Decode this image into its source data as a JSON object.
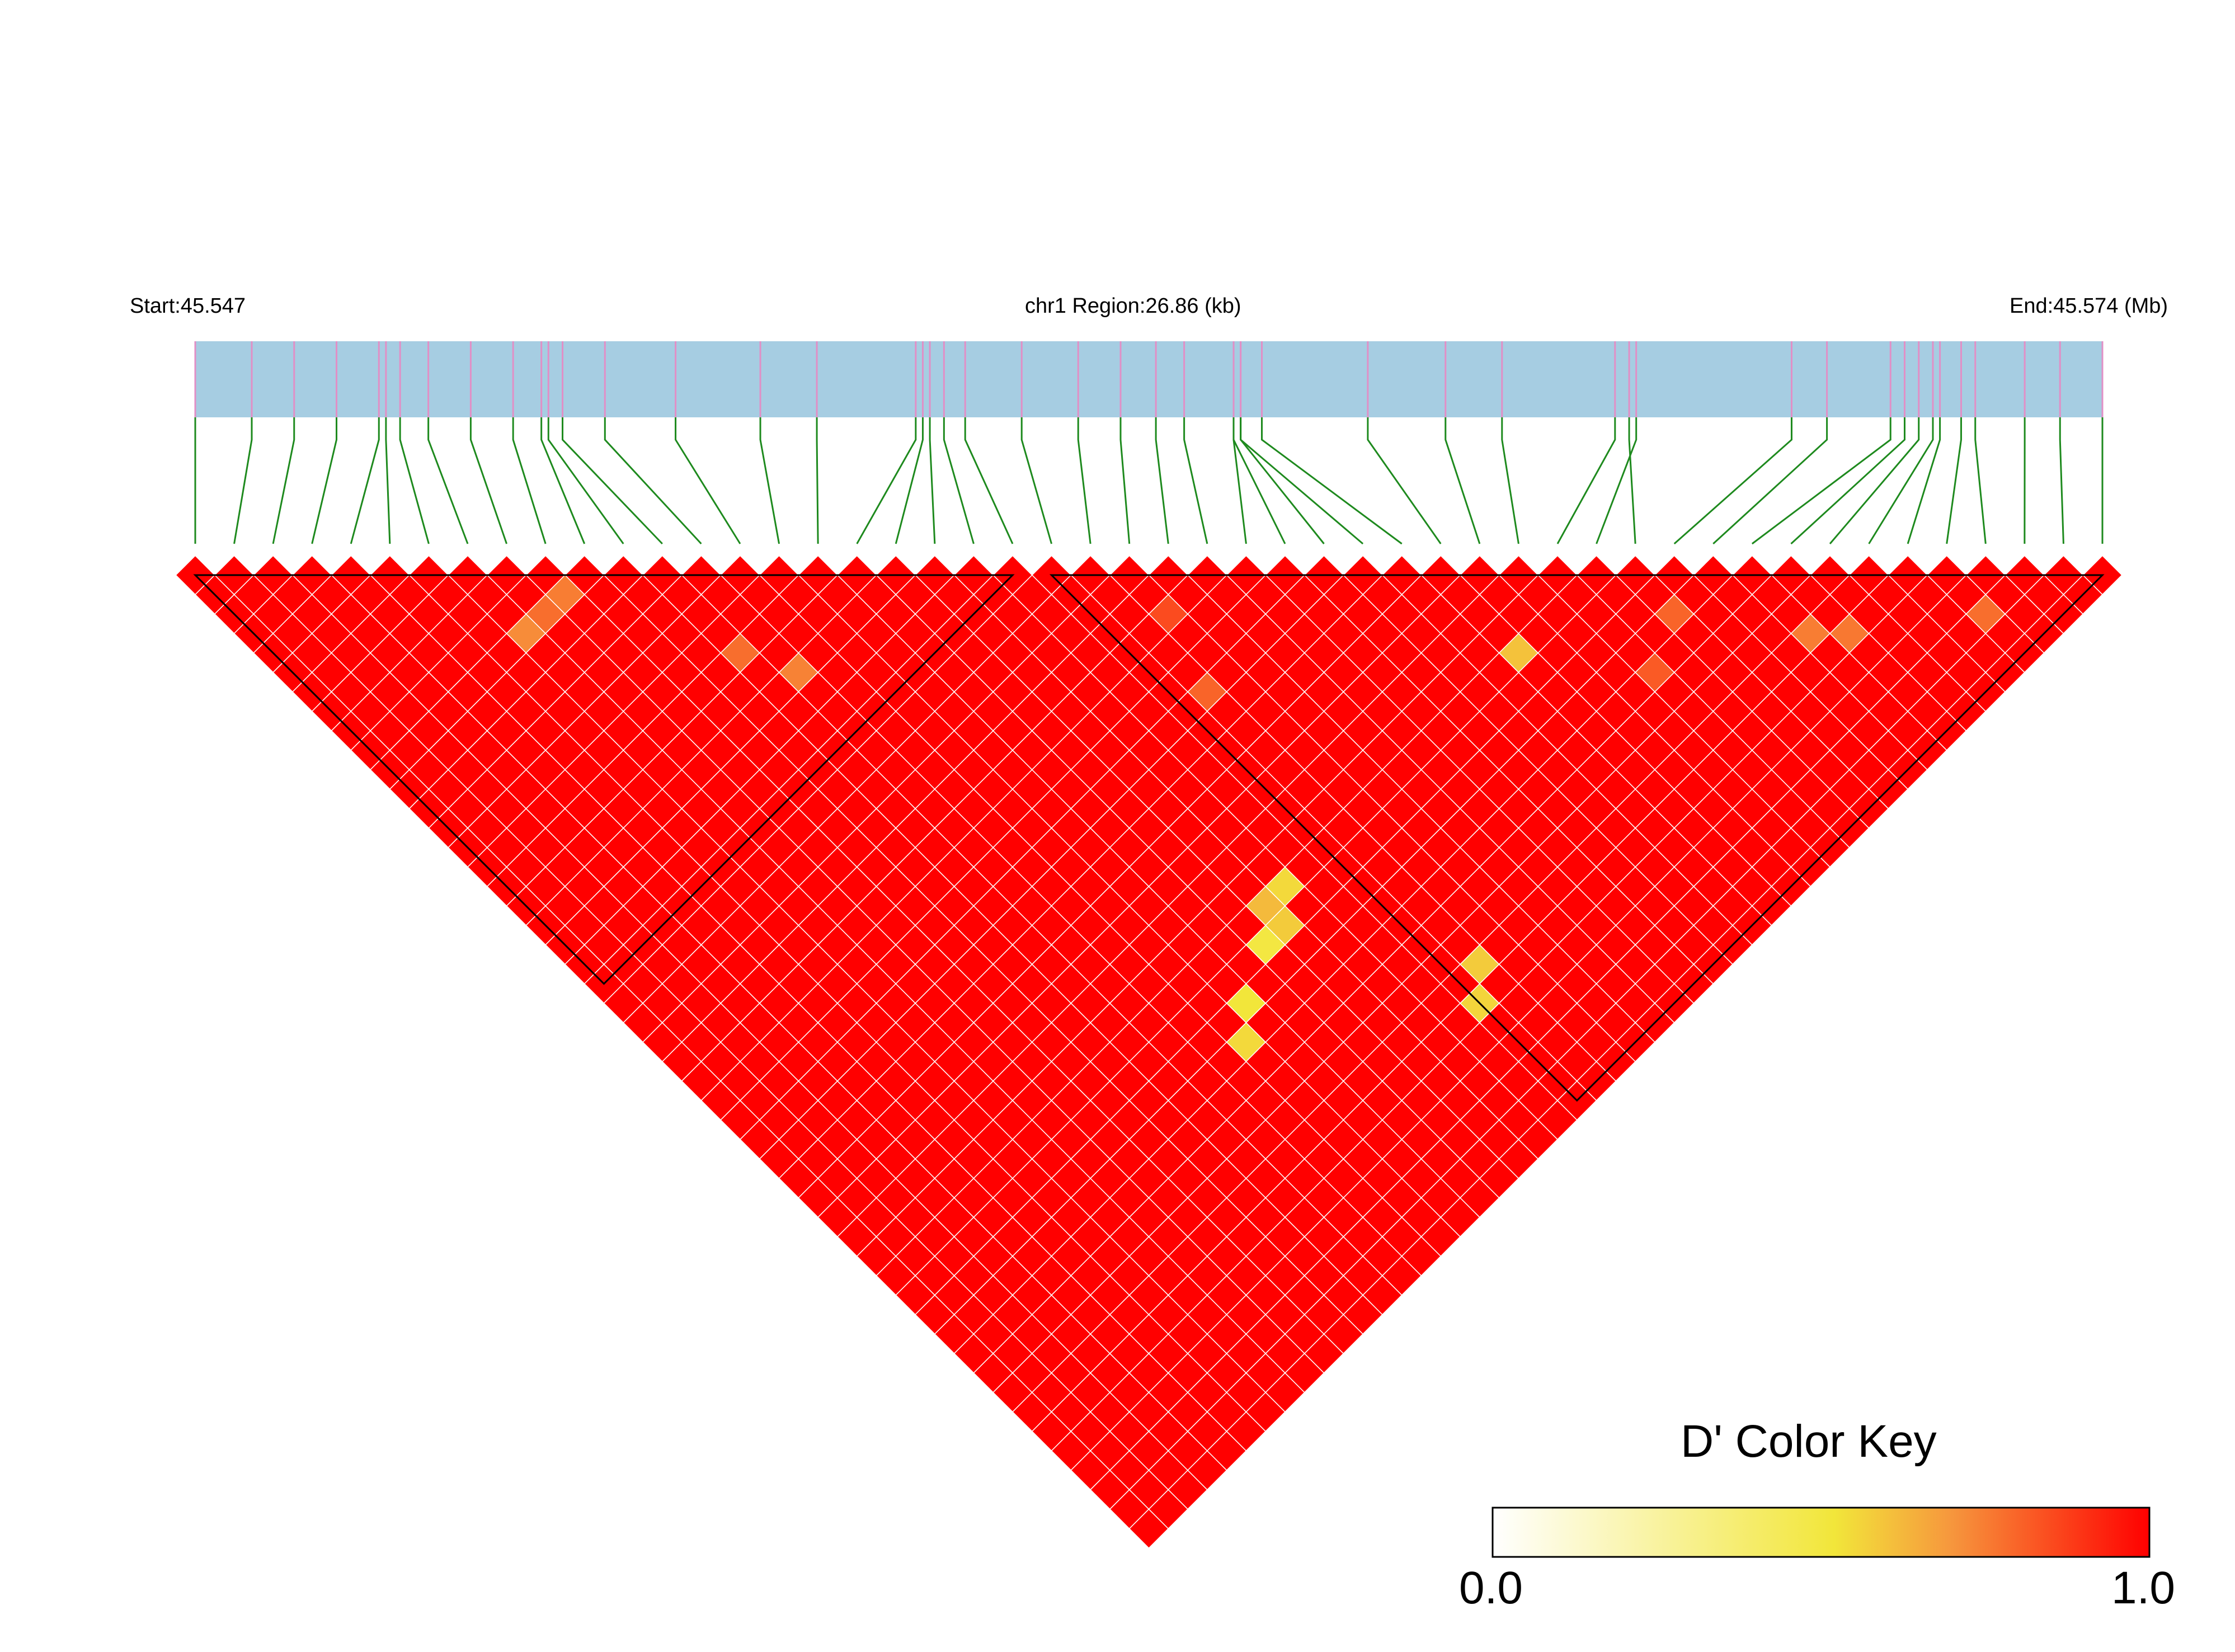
{
  "chart_data": {
    "type": "heatmap",
    "chromosome": "chr1",
    "labels": {
      "start": "Start:45.547",
      "region": "chr1 Region:26.86 (kb)",
      "end": "End:45.574 (Mb)"
    },
    "color_key": {
      "title": "D' Color Key",
      "min_label": "0.0",
      "max_label": "1.0",
      "min": 0.0,
      "max": 1.0
    },
    "colors": {
      "track": "#a6cde2",
      "snp_tick": "#e18fc6",
      "connector": "#1e8a1e",
      "cell_border": "#ffffff",
      "block_outline": "#000000",
      "high": "#ff0000",
      "mid": "#f2e63a",
      "low": "#ffffff"
    },
    "region_mb": [
      45.547,
      45.574
    ],
    "snp_count": 50,
    "snp_positions_mb": [
      45.547,
      45.5478,
      45.5484,
      45.549,
      45.5496,
      45.5497,
      45.5499,
      45.5503,
      45.5509,
      45.5515,
      45.5519,
      45.552,
      45.5522,
      45.5528,
      45.5538,
      45.555,
      45.5558,
      45.5572,
      45.5573,
      45.5574,
      45.5576,
      45.5579,
      45.5587,
      45.5595,
      45.5601,
      45.5606,
      45.561,
      45.5617,
      45.5617,
      45.5618,
      45.5618,
      45.5621,
      45.5636,
      45.5647,
      45.5655,
      45.5671,
      45.5674,
      45.5673,
      45.5696,
      45.5701,
      45.571,
      45.5712,
      45.5714,
      45.5716,
      45.5717,
      45.572,
      45.5722,
      45.5729,
      45.5734,
      45.574
    ],
    "blocks": [
      {
        "from_snp": 1,
        "to_snp": 22
      },
      {
        "from_snp": 23,
        "to_snp": 50
      }
    ],
    "dprime_default": 1.0,
    "dprime_cells": [
      {
        "i": 10,
        "j": 11,
        "d": 0.75
      },
      {
        "i": 9,
        "j": 11,
        "d": 0.78
      },
      {
        "i": 8,
        "j": 11,
        "d": 0.72
      },
      {
        "i": 13,
        "j": 17,
        "d": 0.78
      },
      {
        "i": 14,
        "j": 19,
        "d": 0.74
      },
      {
        "i": 25,
        "j": 27,
        "d": 0.85
      },
      {
        "i": 24,
        "j": 30,
        "d": 0.8
      },
      {
        "i": 33,
        "j": 37,
        "d": 0.6
      },
      {
        "i": 38,
        "j": 40,
        "d": 0.8
      },
      {
        "i": 41,
        "j": 44,
        "d": 0.75
      },
      {
        "i": 42,
        "j": 45,
        "d": 0.76
      },
      {
        "i": 46,
        "j": 48,
        "d": 0.78
      },
      {
        "i": 36,
        "j": 41,
        "d": 0.82
      },
      {
        "i": 21,
        "j": 37,
        "d": 0.55
      },
      {
        "i": 20,
        "j": 37,
        "d": 0.62
      },
      {
        "i": 19,
        "j": 38,
        "d": 0.5
      },
      {
        "i": 20,
        "j": 38,
        "d": 0.58
      },
      {
        "i": 17,
        "j": 39,
        "d": 0.52
      },
      {
        "i": 16,
        "j": 40,
        "d": 0.55
      },
      {
        "i": 24,
        "j": 44,
        "d": 0.58
      },
      {
        "i": 23,
        "j": 45,
        "d": 0.56
      }
    ]
  }
}
